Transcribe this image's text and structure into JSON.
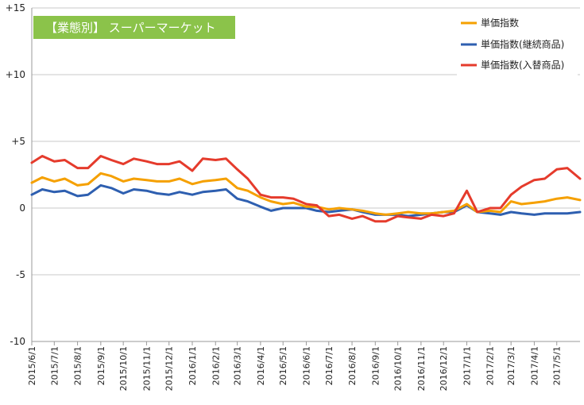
{
  "chart_data": {
    "type": "line",
    "title": "【業態別】 スーパーマーケット",
    "xlabel": "",
    "ylabel": "",
    "ylim": [
      -10,
      15
    ],
    "yticks": [
      {
        "value": 15,
        "label": "+15"
      },
      {
        "value": 10,
        "label": "+10"
      },
      {
        "value": 5,
        "label": "+5"
      },
      {
        "value": 0,
        "label": "0"
      },
      {
        "value": -5,
        "label": "-5"
      },
      {
        "value": -10,
        "label": "-10"
      }
    ],
    "x_tick_labels": [
      "2015/6/1",
      "2015/7/1",
      "2015/8/1",
      "2015/9/1",
      "2015/10/1",
      "2015/11/1",
      "2015/12/1",
      "2016/1/1",
      "2016/2/1",
      "2016/3/1",
      "2016/4/1",
      "2016/5/1",
      "2016/6/1",
      "2016/7/1",
      "2016/8/1",
      "2016/9/1",
      "2016/10/1",
      "2016/11/1",
      "2016/12/1",
      "2017/1/1",
      "2017/2/1",
      "2017/3/1",
      "2017/4/1",
      "2017/5/1"
    ],
    "grid": true,
    "legend_position": "top-right",
    "colors": {
      "series1": "#f5a000",
      "series2": "#2e5fb0",
      "series3": "#e53b2c",
      "title_bg": "#8bc34a"
    },
    "x": [
      "2015/6/1",
      "2015/6/15",
      "2015/7/1",
      "2015/7/15",
      "2015/8/1",
      "2015/8/15",
      "2015/9/1",
      "2015/9/15",
      "2015/10/1",
      "2015/10/15",
      "2015/11/1",
      "2015/11/15",
      "2015/12/1",
      "2015/12/15",
      "2016/1/1",
      "2016/1/15",
      "2016/2/1",
      "2016/2/15",
      "2016/3/1",
      "2016/3/15",
      "2016/4/1",
      "2016/4/15",
      "2016/5/1",
      "2016/5/15",
      "2016/6/1",
      "2016/6/15",
      "2016/7/1",
      "2016/7/15",
      "2016/8/1",
      "2016/8/15",
      "2016/9/1",
      "2016/9/15",
      "2016/10/1",
      "2016/10/15",
      "2016/11/1",
      "2016/11/15",
      "2016/12/1",
      "2016/12/15",
      "2017/1/1",
      "2017/1/15",
      "2017/2/1",
      "2017/2/15",
      "2017/3/1",
      "2017/3/15",
      "2017/4/1",
      "2017/4/15",
      "2017/5/1",
      "2017/5/15",
      "2017/6/1"
    ],
    "series": [
      {
        "name": "単価指数",
        "color": "#f5a000",
        "values": [
          1.9,
          2.3,
          2.0,
          2.2,
          1.7,
          1.8,
          2.6,
          2.4,
          2.0,
          2.2,
          2.1,
          2.0,
          2.0,
          2.2,
          1.8,
          2.0,
          2.1,
          2.2,
          1.5,
          1.3,
          0.8,
          0.5,
          0.3,
          0.4,
          0.1,
          0.1,
          -0.1,
          0.0,
          -0.1,
          -0.2,
          -0.4,
          -0.5,
          -0.4,
          -0.3,
          -0.4,
          -0.4,
          -0.3,
          -0.2,
          0.3,
          -0.3,
          -0.2,
          -0.3,
          0.5,
          0.3,
          0.4,
          0.5,
          0.7,
          0.8,
          0.6
        ]
      },
      {
        "name": "単価指数(継続商品)",
        "color": "#2e5fb0",
        "values": [
          1.0,
          1.4,
          1.2,
          1.3,
          0.9,
          1.0,
          1.7,
          1.5,
          1.1,
          1.4,
          1.3,
          1.1,
          1.0,
          1.2,
          1.0,
          1.2,
          1.3,
          1.4,
          0.7,
          0.5,
          0.1,
          -0.2,
          0.0,
          0.0,
          0.0,
          -0.2,
          -0.3,
          -0.2,
          -0.1,
          -0.3,
          -0.5,
          -0.5,
          -0.5,
          -0.6,
          -0.5,
          -0.4,
          -0.3,
          -0.3,
          0.2,
          -0.3,
          -0.4,
          -0.5,
          -0.3,
          -0.4,
          -0.5,
          -0.4,
          -0.4,
          -0.4,
          -0.3
        ]
      },
      {
        "name": "単価指数(入替商品)",
        "color": "#e53b2c",
        "values": [
          3.4,
          3.9,
          3.5,
          3.6,
          3.0,
          3.0,
          3.9,
          3.6,
          3.3,
          3.7,
          3.5,
          3.3,
          3.3,
          3.5,
          2.8,
          3.7,
          3.6,
          3.7,
          2.9,
          2.2,
          1.0,
          0.8,
          0.8,
          0.7,
          0.3,
          0.2,
          -0.6,
          -0.5,
          -0.8,
          -0.6,
          -1.0,
          -1.0,
          -0.6,
          -0.7,
          -0.8,
          -0.5,
          -0.6,
          -0.4,
          1.3,
          -0.3,
          0.0,
          0.0,
          1.0,
          1.6,
          2.1,
          2.2,
          2.9,
          3.0,
          2.2
        ]
      }
    ]
  }
}
